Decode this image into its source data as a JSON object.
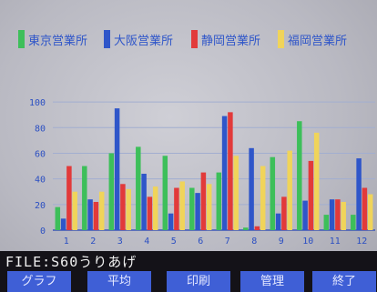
{
  "chart_data": {
    "type": "bar",
    "categories": [
      "1",
      "2",
      "3",
      "4",
      "5",
      "6",
      "7",
      "8",
      "9",
      "10",
      "11",
      "12"
    ],
    "series": [
      {
        "name": "東京営業所",
        "color": "#3dbf5a",
        "values": [
          18,
          50,
          60,
          65,
          58,
          33,
          45,
          2,
          57,
          85,
          12,
          12
        ]
      },
      {
        "name": "大阪営業所",
        "color": "#2f56c9",
        "values": [
          9,
          24,
          95,
          44,
          13,
          29,
          89,
          64,
          13,
          23,
          24,
          56
        ]
      },
      {
        "name": "静岡営業所",
        "color": "#e23a3a",
        "values": [
          50,
          22,
          36,
          26,
          33,
          45,
          92,
          3,
          26,
          54,
          24,
          33
        ]
      },
      {
        "name": "福岡営業所",
        "color": "#f0d45a",
        "values": [
          30,
          30,
          32,
          34,
          38,
          36,
          58,
          50,
          62,
          76,
          22,
          28
        ]
      }
    ],
    "y_ticks": [
      "0",
      "20",
      "40",
      "60",
      "80",
      "100"
    ],
    "ylim": [
      0,
      110
    ],
    "grid": true,
    "legend_position": "top"
  },
  "status": {
    "file_prefix": "FILE:",
    "file_name": "S60うりあげ"
  },
  "function_keys": [
    {
      "label": "グラフ"
    },
    {
      "label": "平均"
    },
    {
      "label": "印刷"
    },
    {
      "label": "管理"
    },
    {
      "label": "終了"
    }
  ]
}
